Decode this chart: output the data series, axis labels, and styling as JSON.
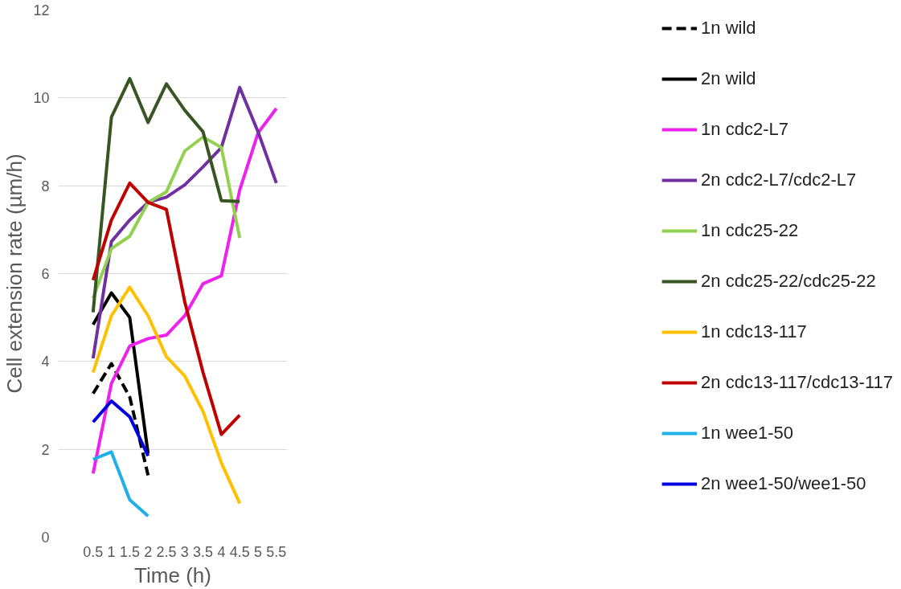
{
  "chart_data": {
    "type": "line",
    "xlabel": "Time (h)",
    "ylabel": "Cell extension rate (µm/h)",
    "xlim": [
      -0.45,
      5.8
    ],
    "xticks": [
      0.5,
      1,
      1.5,
      2,
      2.5,
      3,
      3.5,
      4,
      4.5,
      5,
      5.5
    ],
    "ylim": [
      0,
      12
    ],
    "yticks": [
      0,
      2,
      4,
      6,
      8,
      10,
      12
    ],
    "grid": "y",
    "legend": "right",
    "marker": "none",
    "series": [
      {
        "name": "1n wild",
        "color": "#000000",
        "line_style": "dashed",
        "x": [
          0.5,
          1,
          1.5,
          2
        ],
        "values": [
          3.27,
          3.95,
          3.19,
          1.41
        ]
      },
      {
        "name": "2n wild",
        "color": "#000000",
        "line_style": "solid",
        "x": [
          0.5,
          1,
          1.5,
          2
        ],
        "values": [
          4.84,
          5.56,
          5.0,
          1.9
        ]
      },
      {
        "name": "1n cdc2-L7",
        "color": "#ee22ee",
        "line_style": "solid",
        "x": [
          0.5,
          1,
          1.5,
          2,
          2.5,
          3,
          3.5,
          4,
          4.5,
          5,
          5.5
        ],
        "values": [
          1.45,
          3.5,
          4.35,
          4.52,
          4.6,
          5.04,
          5.77,
          5.95,
          7.9,
          9.2,
          9.76
        ]
      },
      {
        "name": "2n cdc2-L7/cdc2-L7",
        "color": "#7030a0",
        "line_style": "solid",
        "x": [
          0.5,
          1,
          1.5,
          2,
          2.5,
          3,
          3.5,
          4,
          4.5,
          5,
          5.5
        ],
        "values": [
          4.07,
          6.73,
          7.22,
          7.62,
          7.74,
          8.02,
          8.43,
          8.87,
          10.24,
          9.23,
          8.06
        ]
      },
      {
        "name": "1n cdc25-22",
        "color": "#92d050",
        "line_style": "solid",
        "x": [
          0.5,
          1,
          1.5,
          2,
          2.5,
          3,
          3.5,
          4,
          4.5
        ],
        "values": [
          5.44,
          6.57,
          6.85,
          7.62,
          7.86,
          8.79,
          9.11,
          8.87,
          6.81
        ]
      },
      {
        "name": "2n cdc25-22/cdc25-22",
        "color": "#375623",
        "line_style": "solid",
        "x": [
          0.5,
          1,
          1.5,
          2,
          2.5,
          3,
          3.5,
          4,
          4.5
        ],
        "values": [
          5.12,
          9.56,
          10.44,
          9.44,
          10.32,
          9.72,
          9.23,
          7.66,
          7.64
        ]
      },
      {
        "name": "1n cdc13-117",
        "color": "#ffc000",
        "line_style": "solid",
        "x": [
          0.5,
          1,
          1.5,
          2,
          2.5,
          3,
          3.5,
          4,
          4.5
        ],
        "values": [
          3.75,
          5.04,
          5.69,
          5.04,
          4.11,
          3.67,
          2.86,
          1.69,
          0.77
        ]
      },
      {
        "name": "2n cdc13-117/cdc13-117",
        "color": "#c00000",
        "line_style": "solid",
        "x": [
          0.5,
          1,
          1.5,
          2,
          2.5,
          3,
          3.5,
          4,
          4.5
        ],
        "values": [
          5.85,
          7.22,
          8.06,
          7.62,
          7.46,
          5.36,
          3.75,
          2.34,
          2.78
        ]
      },
      {
        "name": "1n wee1-50",
        "color": "#1fb0e8",
        "line_style": "solid",
        "x": [
          0.5,
          1,
          1.5,
          2
        ],
        "values": [
          1.77,
          1.94,
          0.85,
          0.48
        ]
      },
      {
        "name": "2n wee1-50/wee1-50",
        "color": "#0000e0",
        "line_style": "solid",
        "x": [
          0.5,
          1,
          1.5,
          2
        ],
        "values": [
          2.62,
          3.1,
          2.74,
          1.85
        ]
      }
    ]
  }
}
